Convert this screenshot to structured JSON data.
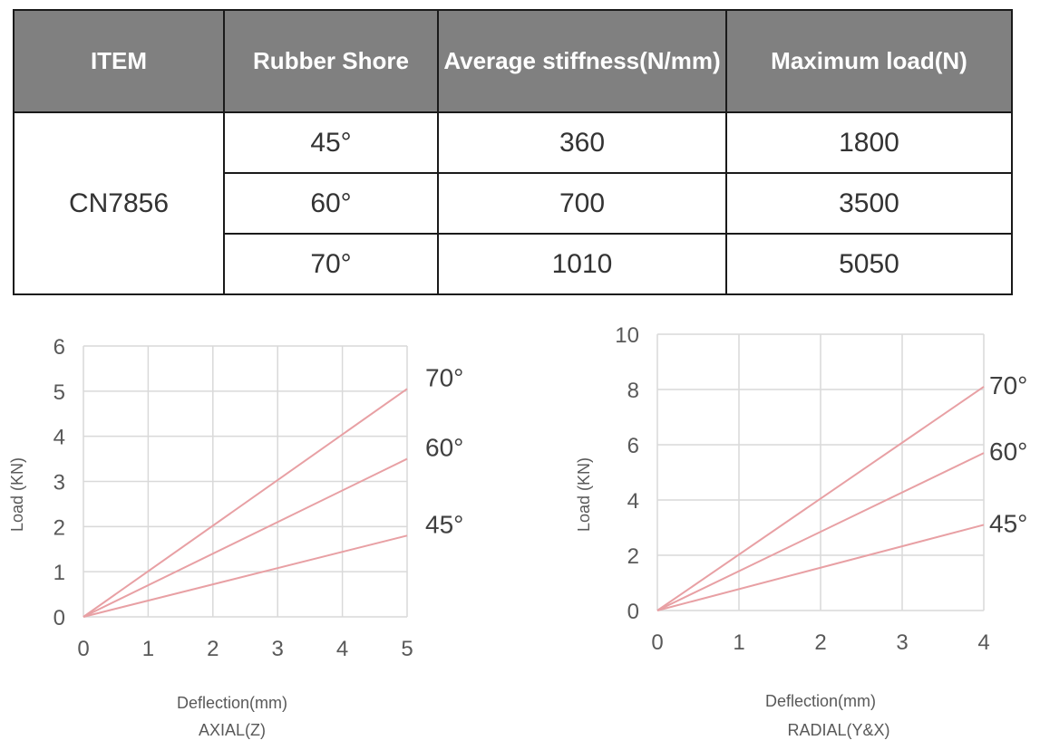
{
  "table": {
    "headers": [
      "ITEM",
      "Rubber Shore",
      "Average stiffness(N/mm)",
      "Maximum load(N)"
    ],
    "item": "CN7856",
    "rows": [
      {
        "shore": "45°",
        "stiffness": "360",
        "max_load": "1800"
      },
      {
        "shore": "60°",
        "stiffness": "700",
        "max_load": "3500"
      },
      {
        "shore": "70°",
        "stiffness": "1010",
        "max_load": "5050"
      }
    ]
  },
  "chart_data": [
    {
      "type": "line",
      "title": "",
      "xlabel": "Deflection(mm)",
      "caption": "AXIAL(Z)",
      "ylabel": "Load (KN)",
      "xlim": [
        0,
        5
      ],
      "ylim": [
        0,
        6
      ],
      "xticks": [
        0,
        1,
        2,
        3,
        4,
        5
      ],
      "yticks": [
        0,
        1,
        2,
        3,
        4,
        5,
        6
      ],
      "grid": true,
      "line_color": "#e8a0a4",
      "series": [
        {
          "name": "70°",
          "x": [
            0,
            5
          ],
          "y": [
            0,
            5.05
          ]
        },
        {
          "name": "60°",
          "x": [
            0,
            5
          ],
          "y": [
            0,
            3.5
          ]
        },
        {
          "name": "45°",
          "x": [
            0,
            5
          ],
          "y": [
            0,
            1.8
          ]
        }
      ]
    },
    {
      "type": "line",
      "title": "",
      "xlabel": "Deflection(mm)",
      "caption": "RADIAL(Y&X)",
      "ylabel": "Load (KN)",
      "xlim": [
        0,
        4
      ],
      "ylim": [
        0,
        10
      ],
      "xticks": [
        0,
        1,
        2,
        3,
        4
      ],
      "yticks": [
        0,
        2,
        4,
        6,
        8,
        10
      ],
      "grid": true,
      "line_color": "#e8a0a4",
      "series": [
        {
          "name": "70°",
          "x": [
            0,
            4
          ],
          "y": [
            0,
            8.1
          ]
        },
        {
          "name": "60°",
          "x": [
            0,
            4
          ],
          "y": [
            0,
            5.7
          ]
        },
        {
          "name": "45°",
          "x": [
            0,
            4
          ],
          "y": [
            0,
            3.1
          ]
        }
      ]
    }
  ]
}
